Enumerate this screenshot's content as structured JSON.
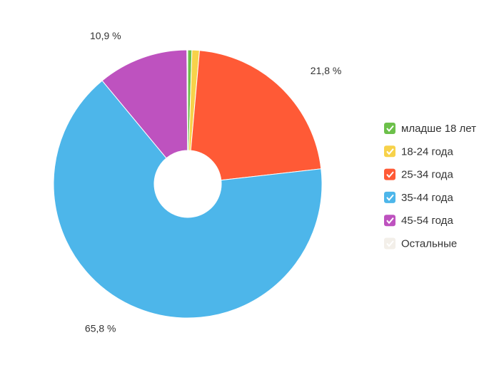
{
  "chart_data": {
    "type": "pie",
    "categories": [
      "младше 18 лет",
      "18-24 года",
      "25-34 года",
      "35-44 года",
      "45-54 года",
      "Остальные"
    ],
    "values": [
      0.5,
      0.9,
      21.8,
      65.8,
      10.9,
      0.1
    ],
    "value_labels": [
      null,
      null,
      "21,8 %",
      "65,8 %",
      "10,9 %",
      null
    ],
    "colors": [
      "#6cc04a",
      "#f7d24a",
      "#ff5a36",
      "#4db6ea",
      "#be52bf",
      "#f3efe9"
    ],
    "legend": "right"
  }
}
